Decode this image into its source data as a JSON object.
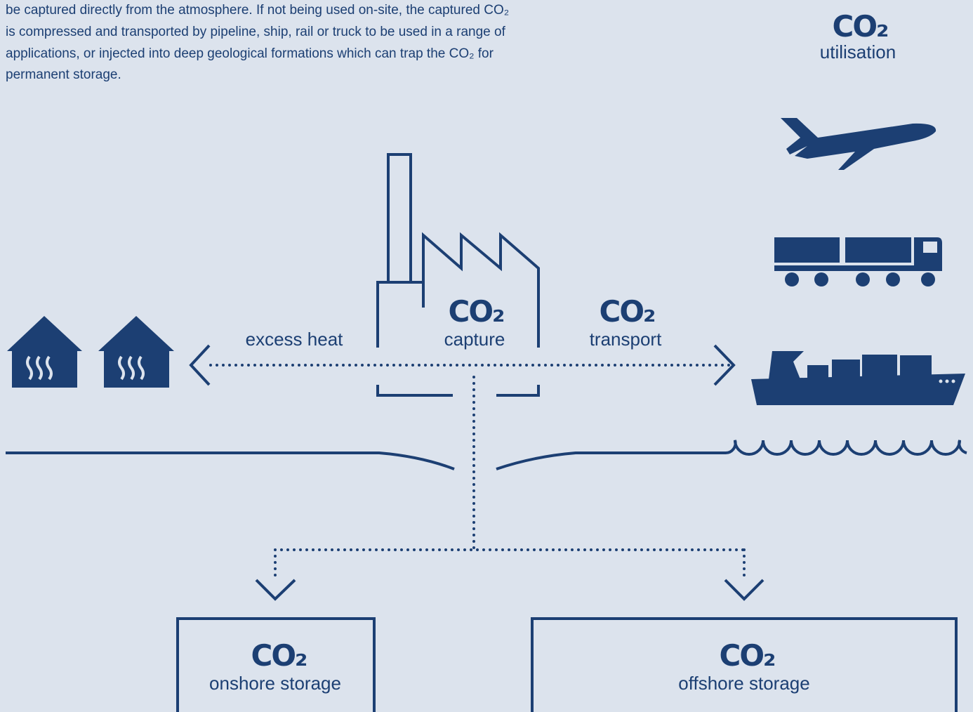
{
  "intro": {
    "lines": [
      "be captured directly from the atmosphere. If not being used on-site, the captured CO₂",
      "is compressed and transported by pipeline, ship, rail or truck to be used in a range of",
      "applications, or injected into deep geological formations which can trap the CO₂ for",
      "permanent storage."
    ]
  },
  "nodes": {
    "utilisation": {
      "title": "CO₂",
      "label": "utilisation"
    },
    "capture": {
      "title": "CO₂",
      "label": "capture"
    },
    "transport": {
      "title": "CO₂",
      "label": "transport"
    },
    "heat": {
      "label": "excess heat"
    },
    "onshore": {
      "title": "CO₂",
      "label": "onshore storage"
    },
    "offshore": {
      "title": "CO₂",
      "label": "offshore storage"
    }
  }
}
